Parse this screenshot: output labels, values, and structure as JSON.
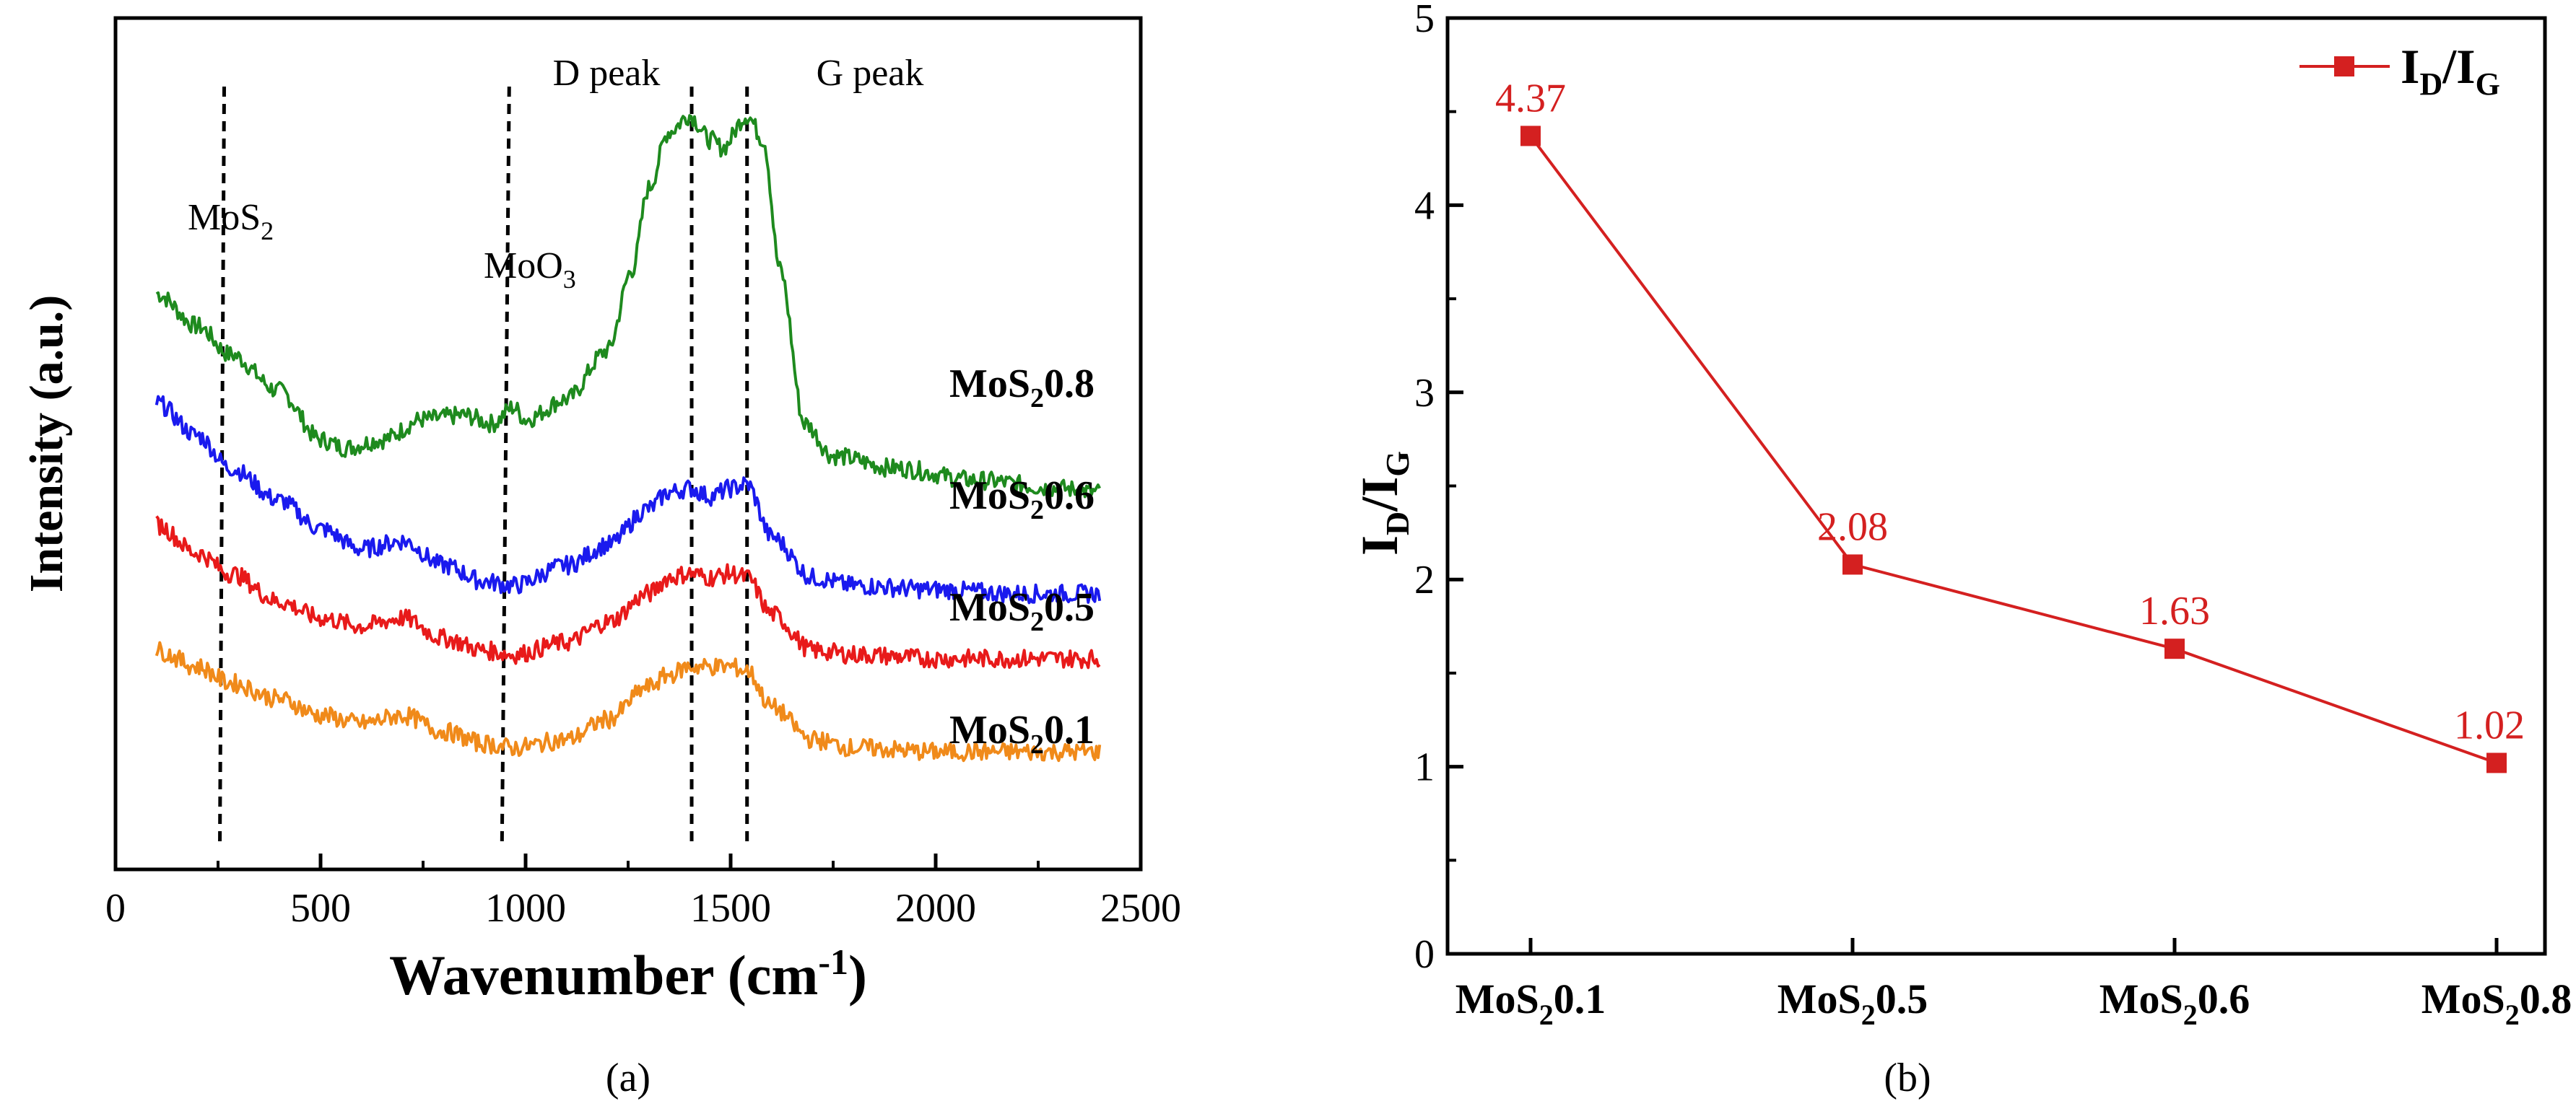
{
  "colors": {
    "MoS2 0.8": "#1e8a1e",
    "MoS2 0.6": "#1a1aee",
    "MoS2 0.5": "#e81a1a",
    "MoS2 0.1": "#f08a1a",
    "ratio": "#d42020",
    "axis": "#000000"
  },
  "chart_data": [
    {
      "type": "line",
      "panel": "(a)",
      "xlabel": "Wavenumber (cm",
      "xlabel_sup": "-1",
      "xlabel_end": ")",
      "ylabel": "Intensity (a.u.)",
      "xlim": [
        0,
        2500
      ],
      "x_ticks": [
        0,
        500,
        1000,
        1500,
        2000,
        2500
      ],
      "y_ticks": [],
      "annotations": [
        {
          "text": "D peak",
          "x": 1400
        },
        {
          "text": "G peak",
          "x": 1540
        },
        {
          "text": "MoS",
          "sub": "2",
          "x": 265
        },
        {
          "text": "MoO",
          "sub": "3",
          "x": 965
        }
      ],
      "series": [
        {
          "name": "MoS2 0.8",
          "label_main": "MoS",
          "label_sub": "2",
          "label_end": "0.8",
          "x": [
            100,
            200,
            280,
            400,
            500,
            560,
            650,
            750,
            850,
            920,
            970,
            1000,
            1100,
            1200,
            1260,
            1300,
            1350,
            1400,
            1450,
            1480,
            1540,
            1580,
            1620,
            1680,
            1750,
            1900,
            2100,
            2300,
            2400
          ],
          "values": [
            1.22,
            1.14,
            1.07,
            0.98,
            0.86,
            0.84,
            0.86,
            0.91,
            0.92,
            0.9,
            0.94,
            0.91,
            0.96,
            1.08,
            1.28,
            1.48,
            1.62,
            1.66,
            1.6,
            1.58,
            1.66,
            1.6,
            1.28,
            0.9,
            0.82,
            0.79,
            0.76,
            0.74,
            0.73
          ]
        },
        {
          "name": "MoS2 0.6",
          "label_main": "MoS",
          "label_sub": "2",
          "label_end": "0.6",
          "x": [
            100,
            200,
            280,
            400,
            500,
            600,
            700,
            800,
            900,
            970,
            1100,
            1200,
            1300,
            1350,
            1400,
            1450,
            1500,
            1540,
            1600,
            1700,
            1800,
            2000,
            2200,
            2400
          ],
          "values": [
            0.95,
            0.87,
            0.79,
            0.71,
            0.64,
            0.59,
            0.61,
            0.55,
            0.51,
            0.5,
            0.55,
            0.6,
            0.69,
            0.73,
            0.74,
            0.72,
            0.74,
            0.75,
            0.62,
            0.52,
            0.5,
            0.49,
            0.48,
            0.48
          ]
        },
        {
          "name": "MoS2 0.5",
          "label_main": "MoS",
          "label_sub": "2",
          "label_end": "0.5",
          "x": [
            100,
            200,
            280,
            400,
            500,
            600,
            700,
            800,
            900,
            970,
            1100,
            1200,
            1300,
            1350,
            1400,
            1450,
            1500,
            1540,
            1600,
            1700,
            1800,
            2000,
            2200,
            2400
          ],
          "values": [
            0.65,
            0.58,
            0.53,
            0.46,
            0.42,
            0.4,
            0.42,
            0.37,
            0.34,
            0.33,
            0.36,
            0.41,
            0.48,
            0.52,
            0.53,
            0.52,
            0.53,
            0.52,
            0.43,
            0.34,
            0.33,
            0.32,
            0.32,
            0.32
          ]
        },
        {
          "name": "MoS2 0.1",
          "label_main": "MoS",
          "label_sub": "2",
          "label_end": "0.1",
          "x": [
            100,
            200,
            280,
            400,
            500,
            600,
            700,
            800,
            900,
            970,
            1100,
            1200,
            1300,
            1350,
            1400,
            1450,
            1500,
            1540,
            1600,
            1700,
            1800,
            2000,
            2200,
            2400
          ],
          "values": [
            0.34,
            0.3,
            0.26,
            0.22,
            0.18,
            0.16,
            0.18,
            0.14,
            0.11,
            0.1,
            0.12,
            0.17,
            0.25,
            0.28,
            0.3,
            0.3,
            0.3,
            0.29,
            0.2,
            0.12,
            0.1,
            0.09,
            0.09,
            0.09
          ]
        }
      ],
      "ylim": [
        -0.2,
        1.9
      ],
      "guide_lines": [
        265,
        960,
        1405,
        1540
      ]
    },
    {
      "type": "line",
      "panel": "(b)",
      "categories": [
        "MoS2 0.1",
        "MoS2 0.5",
        "MoS2 0.6",
        "MoS2 0.8"
      ],
      "category_labels": [
        {
          "main": "MoS",
          "sub": "2",
          "end": "0.1"
        },
        {
          "main": "MoS",
          "sub": "2",
          "end": "0.5"
        },
        {
          "main": "MoS",
          "sub": "2",
          "end": "0.6"
        },
        {
          "main": "MoS",
          "sub": "2",
          "end": "0.8"
        }
      ],
      "series": [
        {
          "name": "ID/IG",
          "values": [
            4.37,
            2.08,
            1.63,
            1.02
          ]
        }
      ],
      "data_labels": [
        "4.37",
        "2.08",
        "1.63",
        "1.02"
      ],
      "ylabel": {
        "a": "I",
        "sa": "D",
        "slash": "/",
        "b": "I",
        "sb": "G"
      },
      "legend": {
        "a": "I",
        "sa": "D",
        "slash": "/",
        "b": "I",
        "sb": "G"
      },
      "ylim": [
        0,
        5
      ],
      "y_ticks": [
        "0",
        "1",
        "2",
        "3",
        "4",
        "5"
      ]
    }
  ]
}
